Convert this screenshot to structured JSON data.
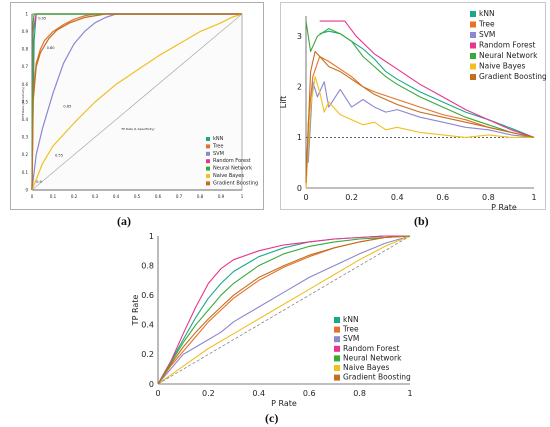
{
  "colors": {
    "kNN": "#1aa88a",
    "Tree": "#e8702a",
    "SVM": "#8c87d0",
    "Random Forest": "#e8358d",
    "Neural Network": "#3aa83a",
    "Naive Bayes": "#f0c020",
    "Gradient Boosting": "#c07020"
  },
  "captions": {
    "a": "(a)",
    "b": "(b)",
    "c": "(c)"
  },
  "chart_data": [
    {
      "id": "a",
      "type": "line",
      "subtype": "roc",
      "xlabel": "FP Rate (1-Specificity)",
      "ylabel": "TP Rate (Sensitivity)",
      "xlim": [
        0,
        1
      ],
      "ylim": [
        0,
        1
      ],
      "xticks": [
        "0",
        "0.1",
        "0.2",
        "0.3",
        "0.4",
        "0.5",
        "0.6",
        "0.7",
        "0.8",
        "0.9",
        "1"
      ],
      "yticks": [
        "0",
        "0.1",
        "0.2",
        "0.3",
        "0.4",
        "0.5",
        "0.6",
        "0.7",
        "0.8",
        "0.9",
        "1"
      ],
      "annotations": [
        {
          "text": "0.95",
          "x": 0.02,
          "y": 0.97
        },
        {
          "text": "0.80",
          "x": 0.06,
          "y": 0.8
        },
        {
          "text": "0.65",
          "x": 0.14,
          "y": 0.47
        },
        {
          "text": "0.55",
          "x": 0.1,
          "y": 0.19
        },
        {
          "text": "0.9",
          "x": 0.01,
          "y": 0.04
        }
      ],
      "legend_position": "bottom-right",
      "series": [
        {
          "name": "kNN",
          "x": [
            0,
            0.01,
            0.02,
            0.1,
            1
          ],
          "y": [
            0,
            0.85,
            1.0,
            1.0,
            1.0
          ]
        },
        {
          "name": "Tree",
          "x": [
            0,
            0.005,
            0.02,
            0.04,
            0.06,
            0.1,
            0.15,
            0.2,
            0.25,
            0.3,
            0.4,
            0.6,
            1
          ],
          "y": [
            0,
            0.55,
            0.72,
            0.8,
            0.85,
            0.9,
            0.94,
            0.97,
            0.99,
            1.0,
            1.0,
            1.0,
            1.0
          ]
        },
        {
          "name": "SVM",
          "x": [
            0,
            0.02,
            0.05,
            0.1,
            0.15,
            0.2,
            0.25,
            0.3,
            0.35,
            0.4,
            0.5,
            1
          ],
          "y": [
            0,
            0.2,
            0.35,
            0.55,
            0.72,
            0.83,
            0.9,
            0.95,
            0.98,
            1.0,
            1.0,
            1.0
          ]
        },
        {
          "name": "Random Forest",
          "x": [
            0,
            0.005,
            0.02,
            0.1,
            1
          ],
          "y": [
            0,
            0.9,
            1.0,
            1.0,
            1.0
          ]
        },
        {
          "name": "Neural Network",
          "x": [
            0,
            0.003,
            0.01,
            0.1,
            1
          ],
          "y": [
            0,
            0.92,
            1.0,
            1.0,
            1.0
          ]
        },
        {
          "name": "Naive Bayes",
          "x": [
            0,
            0.05,
            0.1,
            0.2,
            0.3,
            0.4,
            0.5,
            0.6,
            0.7,
            0.8,
            0.9,
            0.95,
            1
          ],
          "y": [
            0,
            0.15,
            0.25,
            0.38,
            0.5,
            0.6,
            0.68,
            0.76,
            0.83,
            0.9,
            0.95,
            0.98,
            1.0
          ]
        },
        {
          "name": "Gradient Boosting",
          "x": [
            0,
            0.005,
            0.02,
            0.04,
            0.08,
            0.12,
            0.18,
            0.25,
            0.35,
            0.5,
            1
          ],
          "y": [
            0,
            0.5,
            0.7,
            0.78,
            0.86,
            0.91,
            0.95,
            0.98,
            1.0,
            1.0,
            1.0
          ]
        },
        {
          "name": "",
          "style": "diagonal",
          "x": [
            0,
            1
          ],
          "y": [
            0,
            1
          ]
        }
      ]
    },
    {
      "id": "b",
      "type": "line",
      "subtype": "lift",
      "xlabel": "P Rate",
      "ylabel": "Lift",
      "xlim": [
        0,
        1
      ],
      "ylim": [
        0,
        3.4
      ],
      "xticks": [
        "0",
        "0.2",
        "0.4",
        "0.6",
        "0.8",
        "1"
      ],
      "yticks": [
        "0",
        "1",
        "2",
        "3"
      ],
      "baseline": 1,
      "legend_position": "top-right",
      "series": [
        {
          "name": "kNN",
          "x": [
            0.06,
            0.1,
            0.15,
            0.2,
            0.25,
            0.3,
            0.35,
            0.4,
            0.5,
            0.6,
            0.7,
            0.8,
            0.9,
            1.0
          ],
          "y": [
            3.05,
            3.1,
            3.05,
            2.9,
            2.75,
            2.55,
            2.3,
            2.15,
            1.9,
            1.7,
            1.5,
            1.35,
            1.18,
            1.0
          ]
        },
        {
          "name": "Tree",
          "x": [
            0.0,
            0.01,
            0.03,
            0.06,
            0.1,
            0.15,
            0.2,
            0.25,
            0.3,
            0.4,
            0.5,
            0.6,
            0.7,
            0.8,
            0.9,
            1.0
          ],
          "y": [
            0.0,
            1.3,
            2.2,
            2.6,
            2.5,
            2.35,
            2.2,
            2.0,
            1.9,
            1.75,
            1.6,
            1.45,
            1.35,
            1.2,
            1.1,
            1.0
          ]
        },
        {
          "name": "SVM",
          "x": [
            0.01,
            0.03,
            0.05,
            0.08,
            0.1,
            0.15,
            0.2,
            0.25,
            0.3,
            0.35,
            0.4,
            0.5,
            0.6,
            0.7,
            0.8,
            0.9,
            1.0
          ],
          "y": [
            0.5,
            2.1,
            1.8,
            2.1,
            1.6,
            1.95,
            1.6,
            1.75,
            1.6,
            1.5,
            1.55,
            1.4,
            1.3,
            1.2,
            1.15,
            1.05,
            1.0
          ]
        },
        {
          "name": "Random Forest",
          "x": [
            0.06,
            0.17,
            0.22,
            0.3,
            0.4,
            0.5,
            0.6,
            0.7,
            0.8,
            0.9,
            1.0
          ],
          "y": [
            3.3,
            3.3,
            3.0,
            2.65,
            2.35,
            2.05,
            1.8,
            1.55,
            1.35,
            1.15,
            1.0
          ]
        },
        {
          "name": "Neural Network",
          "x": [
            0.0,
            0.02,
            0.05,
            0.1,
            0.15,
            0.2,
            0.25,
            0.3,
            0.35,
            0.4,
            0.5,
            0.6,
            0.7,
            0.8,
            0.9,
            1.0
          ],
          "y": [
            3.3,
            2.7,
            3.0,
            3.15,
            3.05,
            2.9,
            2.6,
            2.4,
            2.2,
            2.05,
            1.8,
            1.6,
            1.4,
            1.25,
            1.1,
            1.0
          ]
        },
        {
          "name": "Naive Bayes",
          "x": [
            0.0,
            0.02,
            0.04,
            0.06,
            0.08,
            0.1,
            0.15,
            0.2,
            0.25,
            0.3,
            0.35,
            0.4,
            0.5,
            0.6,
            0.7,
            0.8,
            0.9,
            1.0
          ],
          "y": [
            0.0,
            1.6,
            2.2,
            1.9,
            1.5,
            1.7,
            1.45,
            1.35,
            1.25,
            1.3,
            1.15,
            1.2,
            1.1,
            1.05,
            1.0,
            1.05,
            1.0,
            1.0
          ]
        },
        {
          "name": "Gradient Boosting",
          "x": [
            0.0,
            0.02,
            0.04,
            0.06,
            0.1,
            0.15,
            0.2,
            0.25,
            0.3,
            0.35,
            0.4,
            0.5,
            0.6,
            0.7,
            0.8,
            0.9,
            1.0
          ],
          "y": [
            0.1,
            2.3,
            2.7,
            2.6,
            2.4,
            2.3,
            2.15,
            2.0,
            1.85,
            1.75,
            1.65,
            1.5,
            1.4,
            1.3,
            1.2,
            1.1,
            1.0
          ]
        }
      ]
    },
    {
      "id": "c",
      "type": "line",
      "subtype": "roc",
      "xlabel": "P Rate",
      "ylabel": "TP Rate",
      "xlim": [
        0,
        1
      ],
      "ylim": [
        0,
        1
      ],
      "xticks": [
        "0",
        "0.2",
        "0.4",
        "0.6",
        "0.8",
        "1"
      ],
      "yticks": [
        "0",
        "0.2",
        "0.4",
        "0.6",
        "0.8",
        "1"
      ],
      "legend_position": "bottom-right",
      "series": [
        {
          "name": "kNN",
          "x": [
            0,
            0.05,
            0.1,
            0.15,
            0.2,
            0.25,
            0.3,
            0.4,
            0.5,
            0.6,
            0.7,
            0.8,
            0.9,
            1.0
          ],
          "y": [
            0,
            0.15,
            0.3,
            0.45,
            0.58,
            0.68,
            0.76,
            0.86,
            0.92,
            0.96,
            0.98,
            0.99,
            1.0,
            1.0
          ]
        },
        {
          "name": "Tree",
          "x": [
            0,
            0.05,
            0.1,
            0.15,
            0.2,
            0.25,
            0.3,
            0.35,
            0.4,
            0.5,
            0.6,
            0.7,
            0.8,
            0.9,
            1.0
          ],
          "y": [
            0,
            0.12,
            0.22,
            0.32,
            0.42,
            0.5,
            0.58,
            0.64,
            0.7,
            0.79,
            0.86,
            0.92,
            0.96,
            0.99,
            1.0
          ]
        },
        {
          "name": "SVM",
          "x": [
            0,
            0.1,
            0.2,
            0.25,
            0.3,
            0.35,
            0.4,
            0.5,
            0.6,
            0.7,
            0.8,
            0.9,
            1.0
          ],
          "y": [
            0,
            0.2,
            0.3,
            0.35,
            0.42,
            0.47,
            0.52,
            0.62,
            0.72,
            0.8,
            0.88,
            0.95,
            1.0
          ]
        },
        {
          "name": "Random Forest",
          "x": [
            0,
            0.05,
            0.1,
            0.15,
            0.2,
            0.25,
            0.3,
            0.4,
            0.5,
            0.6,
            0.7,
            0.8,
            0.9,
            1.0
          ],
          "y": [
            0,
            0.15,
            0.34,
            0.52,
            0.68,
            0.78,
            0.84,
            0.9,
            0.94,
            0.96,
            0.98,
            0.99,
            1.0,
            1.0
          ]
        },
        {
          "name": "Neural Network",
          "x": [
            0,
            0.05,
            0.1,
            0.15,
            0.2,
            0.25,
            0.3,
            0.4,
            0.5,
            0.6,
            0.7,
            0.8,
            0.9,
            1.0
          ],
          "y": [
            0,
            0.14,
            0.28,
            0.4,
            0.5,
            0.6,
            0.68,
            0.8,
            0.88,
            0.93,
            0.96,
            0.98,
            0.99,
            1.0
          ]
        },
        {
          "name": "Naive Bayes",
          "x": [
            0,
            0.1,
            0.2,
            0.3,
            0.4,
            0.5,
            0.6,
            0.7,
            0.8,
            0.9,
            1.0
          ],
          "y": [
            0,
            0.12,
            0.24,
            0.34,
            0.44,
            0.54,
            0.64,
            0.74,
            0.84,
            0.93,
            1.0
          ]
        },
        {
          "name": "Gradient Boosting",
          "x": [
            0,
            0.05,
            0.1,
            0.15,
            0.2,
            0.25,
            0.3,
            0.35,
            0.4,
            0.5,
            0.6,
            0.7,
            0.8,
            0.9,
            1.0
          ],
          "y": [
            0,
            0.13,
            0.25,
            0.35,
            0.44,
            0.52,
            0.6,
            0.66,
            0.72,
            0.8,
            0.87,
            0.92,
            0.96,
            0.99,
            1.0
          ]
        },
        {
          "name": "",
          "style": "diagonal",
          "x": [
            0,
            1
          ],
          "y": [
            0,
            1
          ]
        }
      ]
    }
  ]
}
